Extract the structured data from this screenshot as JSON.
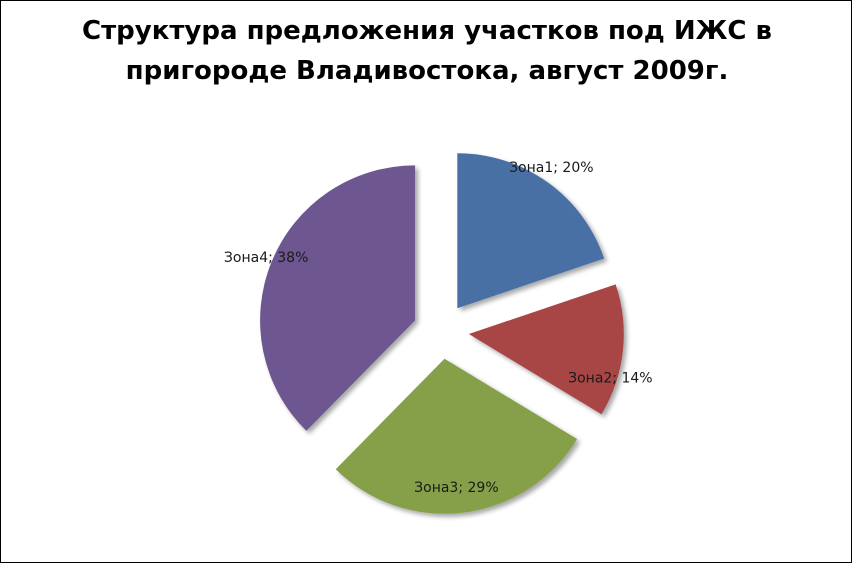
{
  "chart_data": {
    "type": "pie",
    "title_lines": [
      "Структура предложения участков под ИЖС в",
      "пригороде Владивостока, август 2009г."
    ],
    "slices": [
      {
        "label": "Зона1",
        "value": 20,
        "color": "#4A6FA5",
        "label_text": "Зона1; 20%"
      },
      {
        "label": "Зона2",
        "value": 14,
        "color": "#A84444",
        "label_text": "Зона2; 14%"
      },
      {
        "label": "Зона3",
        "value": 29,
        "color": "#85A04A",
        "label_text": "Зона3; 29%"
      },
      {
        "label": "Зона4",
        "value": 38,
        "color": "#6E5690",
        "label_text": "Зона4; 38%"
      }
    ],
    "exploded": true,
    "legend": "none"
  }
}
